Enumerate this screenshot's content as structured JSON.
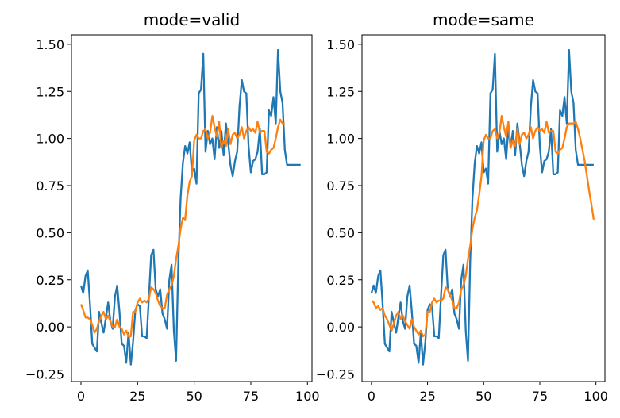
{
  "chart_data": [
    {
      "type": "line",
      "title": "mode=valid",
      "xlabel": "",
      "ylabel": "",
      "xlim": [
        -4.2,
        102
      ],
      "ylim": [
        -0.29,
        1.55
      ],
      "x_ticks": [
        0,
        25,
        50,
        75,
        100
      ],
      "y_ticks": [
        -0.25,
        0.0,
        0.25,
        0.5,
        0.75,
        1.0,
        1.25,
        1.5
      ],
      "x_tick_labels": [
        "0",
        "25",
        "50",
        "75",
        "100"
      ],
      "y_tick_labels": [
        "−0.25",
        "0.00",
        "0.25",
        "0.50",
        "0.75",
        "1.00",
        "1.25",
        "1.50"
      ],
      "grid": false,
      "series": [
        {
          "color": "#1f77b4",
          "x": [
            0,
            1,
            2,
            3,
            4,
            5,
            6,
            7,
            8,
            9,
            10,
            11,
            12,
            13,
            14,
            15,
            16,
            17,
            18,
            19,
            20,
            21,
            22,
            23,
            24,
            25,
            26,
            27,
            28,
            29,
            30,
            31,
            32,
            33,
            34,
            35,
            36,
            37,
            38,
            39,
            40,
            41,
            42,
            43,
            44,
            45,
            46,
            47,
            48,
            49,
            50,
            51,
            52,
            53,
            54,
            55,
            56,
            57,
            58,
            59,
            60,
            61,
            62,
            63,
            64,
            65,
            66,
            67,
            68,
            69,
            70,
            71,
            72,
            73,
            74,
            75,
            76,
            77,
            78,
            79,
            80,
            81,
            82,
            83,
            84,
            85,
            86,
            87,
            88,
            89,
            90,
            91,
            92,
            93,
            94,
            95,
            96,
            97
          ],
          "y": [
            0.22,
            0.18,
            0.27,
            0.3,
            0.12,
            -0.09,
            -0.11,
            -0.13,
            0.08,
            0.02,
            -0.03,
            0.05,
            0.13,
            0.03,
            -0.01,
            0.16,
            0.22,
            0.08,
            -0.09,
            -0.1,
            -0.19,
            -0.03,
            -0.2,
            -0.08,
            0.09,
            0.12,
            0.11,
            -0.05,
            -0.05,
            -0.06,
            0.16,
            0.38,
            0.41,
            0.2,
            0.16,
            0.2,
            0.07,
            0.04,
            -0.01,
            0.25,
            0.33,
            -0.02,
            -0.18,
            0.35,
            0.68,
            0.87,
            0.96,
            0.92,
            0.98,
            0.82,
            0.84,
            0.76,
            1.24,
            1.26,
            1.45,
            0.93,
            1.04,
            0.97,
            1.0,
            0.89,
            1.06,
            0.95,
            1.04,
            0.91,
            1.08,
            0.98,
            0.86,
            0.8,
            0.88,
            0.93,
            1.17,
            1.31,
            1.25,
            1.24,
            0.96,
            0.82,
            0.88,
            0.89,
            0.93,
            1.05,
            0.81,
            0.81,
            0.82,
            1.15,
            1.12,
            1.22,
            1.08,
            1.47,
            1.25,
            1.19,
            0.94,
            0.86,
            0.86,
            0.86,
            0.86,
            0.86,
            0.86,
            0.86
          ]
        },
        {
          "color": "#ff7f0e",
          "x": [
            0,
            1,
            2,
            3,
            4,
            5,
            6,
            7,
            8,
            9,
            10,
            11,
            12,
            13,
            14,
            15,
            16,
            17,
            18,
            19,
            20,
            21,
            22,
            23,
            24,
            25,
            26,
            27,
            28,
            29,
            30,
            31,
            32,
            33,
            34,
            35,
            36,
            37,
            38,
            39,
            40,
            41,
            42,
            43,
            44,
            45,
            46,
            47,
            48,
            49,
            50,
            51,
            52,
            53,
            54,
            55,
            56,
            57,
            58,
            59,
            60,
            61,
            62,
            63,
            64,
            65,
            66,
            67,
            68,
            69,
            70,
            71,
            72,
            73,
            74,
            75,
            76,
            77,
            78,
            79,
            80,
            81,
            82,
            83,
            84,
            85,
            86,
            87,
            88,
            89,
            90
          ],
          "y": [
            0.12,
            0.09,
            0.05,
            0.05,
            0.04,
            0.01,
            -0.03,
            -0.01,
            0.03,
            0.06,
            0.08,
            0.04,
            0.06,
            0.03,
            0.0,
            0.0,
            0.04,
            0.0,
            -0.01,
            -0.04,
            -0.02,
            -0.05,
            -0.05,
            0.08,
            0.08,
            0.13,
            0.15,
            0.13,
            0.14,
            0.13,
            0.15,
            0.21,
            0.2,
            0.18,
            0.14,
            0.11,
            0.1,
            0.1,
            0.17,
            0.2,
            0.22,
            0.27,
            0.36,
            0.43,
            0.52,
            0.58,
            0.57,
            0.7,
            0.77,
            0.8,
            0.99,
            1.02,
            1.0,
            1.0,
            1.04,
            1.05,
            1.0,
            1.03,
            1.12,
            1.06,
            1.01,
            1.09,
            0.95,
            0.99,
            0.96,
            1.05,
            0.97,
            1.02,
            1.03,
            1.0,
            1.02,
            1.06,
            1.0,
            1.04,
            1.06,
            1.04,
            1.05,
            1.03,
            1.09,
            1.03,
            1.04,
            1.04,
            0.93,
            0.92,
            0.94,
            0.95,
            1.0,
            1.06,
            1.1,
            1.08,
            1.08
          ]
        }
      ]
    },
    {
      "type": "line",
      "title": "mode=same",
      "xlabel": "",
      "ylabel": "",
      "xlim": [
        -4.2,
        104
      ],
      "ylim": [
        -0.29,
        1.55
      ],
      "x_ticks": [
        0,
        25,
        50,
        75,
        100
      ],
      "y_ticks": [
        -0.25,
        0.0,
        0.25,
        0.5,
        0.75,
        1.0,
        1.25,
        1.5
      ],
      "x_tick_labels": [
        "0",
        "25",
        "50",
        "75",
        "100"
      ],
      "y_tick_labels": [
        "−0.25",
        "0.00",
        "0.25",
        "0.50",
        "0.75",
        "1.00",
        "1.25",
        "1.50"
      ],
      "grid": false,
      "series": [
        {
          "color": "#1f77b4",
          "x": [
            0,
            1,
            2,
            3,
            4,
            5,
            6,
            7,
            8,
            9,
            10,
            11,
            12,
            13,
            14,
            15,
            16,
            17,
            18,
            19,
            20,
            21,
            22,
            23,
            24,
            25,
            26,
            27,
            28,
            29,
            30,
            31,
            32,
            33,
            34,
            35,
            36,
            37,
            38,
            39,
            40,
            41,
            42,
            43,
            44,
            45,
            46,
            47,
            48,
            49,
            50,
            51,
            52,
            53,
            54,
            55,
            56,
            57,
            58,
            59,
            60,
            61,
            62,
            63,
            64,
            65,
            66,
            67,
            68,
            69,
            70,
            71,
            72,
            73,
            74,
            75,
            76,
            77,
            78,
            79,
            80,
            81,
            82,
            83,
            84,
            85,
            86,
            87,
            88,
            89,
            90,
            91,
            92,
            93,
            94,
            95,
            96,
            97,
            98,
            99
          ],
          "y": [
            0.18,
            0.22,
            0.18,
            0.27,
            0.3,
            0.12,
            -0.09,
            -0.11,
            -0.13,
            0.08,
            0.02,
            -0.03,
            0.05,
            0.13,
            0.03,
            -0.01,
            0.16,
            0.22,
            0.08,
            -0.09,
            -0.1,
            -0.19,
            -0.03,
            -0.2,
            -0.08,
            0.09,
            0.12,
            0.11,
            -0.05,
            -0.05,
            -0.06,
            0.16,
            0.38,
            0.41,
            0.2,
            0.16,
            0.2,
            0.07,
            0.04,
            -0.01,
            0.25,
            0.33,
            -0.02,
            -0.18,
            0.35,
            0.68,
            0.87,
            0.96,
            0.92,
            0.98,
            0.82,
            0.84,
            0.76,
            1.24,
            1.26,
            1.45,
            0.93,
            1.04,
            0.97,
            1.0,
            0.89,
            1.06,
            0.95,
            1.04,
            0.91,
            1.08,
            0.98,
            0.86,
            0.8,
            0.88,
            0.93,
            1.17,
            1.31,
            1.25,
            1.24,
            0.96,
            0.82,
            0.88,
            0.89,
            0.93,
            1.05,
            0.81,
            0.81,
            0.82,
            1.15,
            1.12,
            1.22,
            1.08,
            1.47,
            1.25,
            1.19,
            0.94,
            0.86,
            0.86,
            0.86,
            0.86,
            0.86,
            0.86,
            0.86,
            0.86
          ]
        },
        {
          "color": "#ff7f0e",
          "x": [
            0,
            1,
            2,
            3,
            4,
            5,
            6,
            7,
            8,
            9,
            10,
            11,
            12,
            13,
            14,
            15,
            16,
            17,
            18,
            19,
            20,
            21,
            22,
            23,
            24,
            25,
            26,
            27,
            28,
            29,
            30,
            31,
            32,
            33,
            34,
            35,
            36,
            37,
            38,
            39,
            40,
            41,
            42,
            43,
            44,
            45,
            46,
            47,
            48,
            49,
            50,
            51,
            52,
            53,
            54,
            55,
            56,
            57,
            58,
            59,
            60,
            61,
            62,
            63,
            64,
            65,
            66,
            67,
            68,
            69,
            70,
            71,
            72,
            73,
            74,
            75,
            76,
            77,
            78,
            79,
            80,
            81,
            82,
            83,
            84,
            85,
            86,
            87,
            88,
            89,
            90,
            91,
            92,
            93,
            94,
            95,
            96,
            97,
            98,
            99
          ],
          "y": [
            0.14,
            0.13,
            0.1,
            0.11,
            0.09,
            0.1,
            0.06,
            0.04,
            0.01,
            -0.02,
            0.02,
            0.06,
            0.08,
            0.04,
            0.06,
            0.03,
            0.01,
            -0.01,
            0.04,
            0.0,
            -0.02,
            -0.04,
            -0.02,
            -0.05,
            -0.04,
            0.08,
            0.08,
            0.13,
            0.15,
            0.13,
            0.14,
            0.14,
            0.15,
            0.21,
            0.2,
            0.17,
            0.14,
            0.1,
            0.1,
            0.13,
            0.2,
            0.22,
            0.27,
            0.36,
            0.43,
            0.52,
            0.58,
            0.62,
            0.7,
            0.8,
            0.99,
            1.02,
            1.0,
            1.0,
            1.04,
            1.05,
            1.0,
            1.03,
            1.12,
            1.06,
            1.01,
            1.09,
            0.95,
            0.99,
            0.96,
            1.05,
            0.97,
            1.02,
            1.03,
            1.0,
            1.02,
            1.06,
            1.0,
            1.04,
            1.06,
            1.04,
            1.05,
            1.03,
            1.09,
            1.03,
            1.04,
            1.04,
            0.93,
            0.92,
            0.94,
            0.95,
            1.0,
            1.06,
            1.08,
            1.08,
            1.08,
            1.09,
            1.05,
            1.0,
            0.94,
            0.88,
            0.8,
            0.72,
            0.65,
            0.57
          ]
        }
      ]
    }
  ]
}
